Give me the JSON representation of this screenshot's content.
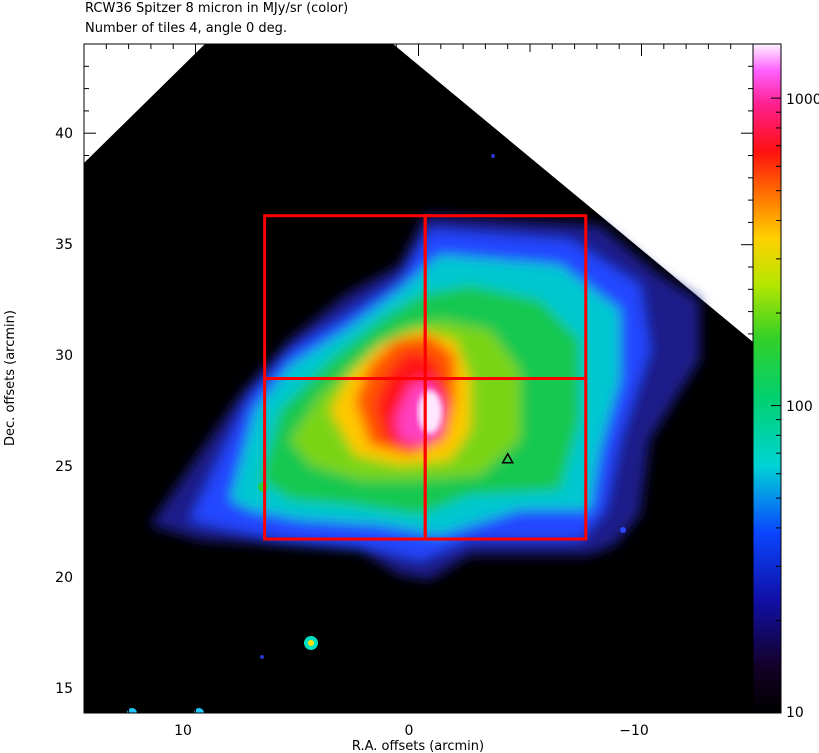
{
  "header": {
    "title": "RCW36 Spitzer 8 micron in MJy/sr (color)",
    "subtitle": "Number of tiles 4, angle 0 deg."
  },
  "axes": {
    "xlabel": "R.A. offsets (arcmin)",
    "ylabel": "Dec. offsets (arcmin)",
    "x_ticks": [
      "10",
      "0",
      "−10"
    ],
    "y_ticks": [
      "40",
      "35",
      "30",
      "25",
      "20",
      "15"
    ],
    "xlim": [
      15,
      -15
    ],
    "ylim": [
      14,
      44
    ]
  },
  "colorbar": {
    "ticks": [
      "1000",
      "100",
      "10"
    ],
    "scale": "log",
    "range": [
      10,
      1500
    ]
  },
  "tiles": {
    "count": 4,
    "ra_edges": [
      6.9,
      -0.3,
      -7.5
    ],
    "dec_edges": [
      21.8,
      29.0,
      36.3
    ],
    "color": "#ff0000"
  },
  "marker": {
    "symbol": "triangle",
    "ra": -4.0,
    "dec": 25.4
  },
  "colors": {
    "background": "#000000",
    "image_low": "#1a1a8a",
    "image_mid": "#21d43a",
    "image_peak": "#ffe8ff"
  }
}
